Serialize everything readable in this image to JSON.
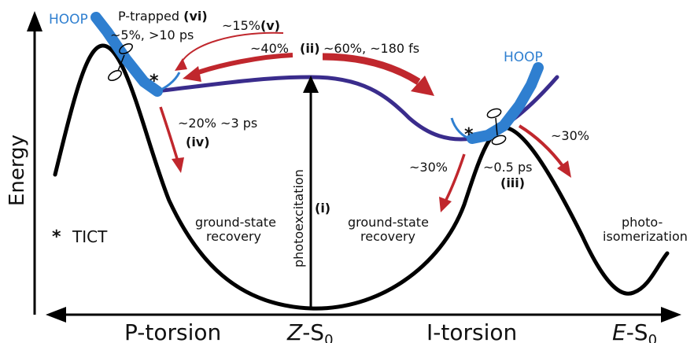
{
  "axes": {
    "y_label": "Energy",
    "x_left": "P-torsion",
    "x_right": "I-torsion",
    "x_center_main": "Z",
    "x_center_rest": "-S",
    "x_center_sub": "0",
    "x_end_main": "E",
    "x_end_rest": "-S",
    "x_end_sub": "0"
  },
  "hoop_left": "HOOP",
  "hoop_right": "HOOP",
  "ptrapped": {
    "label": "P-trapped",
    "tag": "(vi)",
    "line2": "~5%, >10 ps"
  },
  "branch_v": {
    "label": "~15%",
    "tag": "(v)"
  },
  "branch_ii": {
    "left": "~40%",
    "tag": "(ii)",
    "right": "~60%, ~180 fs"
  },
  "branch_iv": {
    "label": "~20% ~3 ps",
    "tag": "(iv)"
  },
  "photoexcitation": {
    "label": "photoexcitation",
    "tag": "(i)"
  },
  "branch_right_down": "~30%",
  "branch_right_up": "~30%",
  "branch_iii": {
    "label": "~0.5 ps",
    "tag": "(iii)"
  },
  "gs_recovery_left": {
    "line1": "ground-state",
    "line2": "recovery"
  },
  "gs_recovery_right": {
    "line1": "ground-state",
    "line2": "recovery"
  },
  "photoisomerization": {
    "line1": "photo-",
    "line2": "isomerization"
  },
  "legend": {
    "star": "*",
    "text": "TICT"
  },
  "colors": {
    "ground_state": "#000000",
    "excited_state": "#3a2c8c",
    "hoop": "#2f7fd0",
    "arrow": "#c0272d"
  }
}
